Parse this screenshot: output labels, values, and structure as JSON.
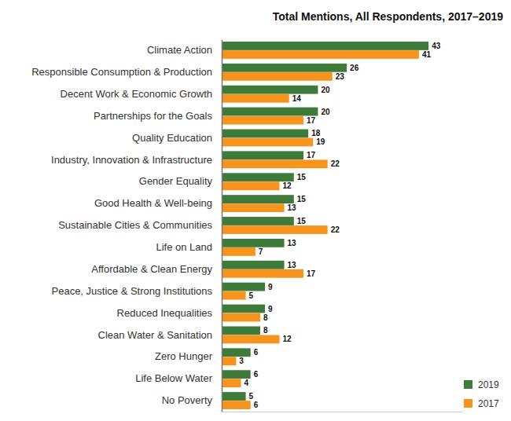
{
  "chart_data": {
    "type": "bar",
    "orientation": "horizontal",
    "title": "Total Mentions, All Respondents, 2017–2019",
    "categories": [
      "Climate Action",
      "Responsible Consumption & Production",
      "Decent Work & Economic Growth",
      "Partnerships for the Goals",
      "Quality Education",
      "Industry, Innovation & Infrastructure",
      "Gender Equality",
      "Good Health & Well-being",
      "Sustainable Cities & Communities",
      "Life on Land",
      "Affordable & Clean Energy",
      "Peace, Justice & Strong Institutions",
      "Reduced Inequalities",
      "Clean Water & Sanitation",
      "Zero Hunger",
      "Life Below Water",
      "No Poverty"
    ],
    "series": [
      {
        "name": "2019",
        "color": "#3e7b3a",
        "values": [
          43,
          26,
          20,
          20,
          18,
          17,
          15,
          15,
          15,
          13,
          13,
          9,
          9,
          8,
          6,
          6,
          5
        ]
      },
      {
        "name": "2017",
        "color": "#f7941d",
        "values": [
          41,
          23,
          14,
          17,
          19,
          22,
          12,
          13,
          22,
          7,
          17,
          5,
          8,
          12,
          3,
          4,
          6
        ]
      }
    ],
    "xlim": [
      0,
      50
    ],
    "tick_labels": "y",
    "grid": false,
    "data_labels": true,
    "legend": "bottom-right"
  }
}
